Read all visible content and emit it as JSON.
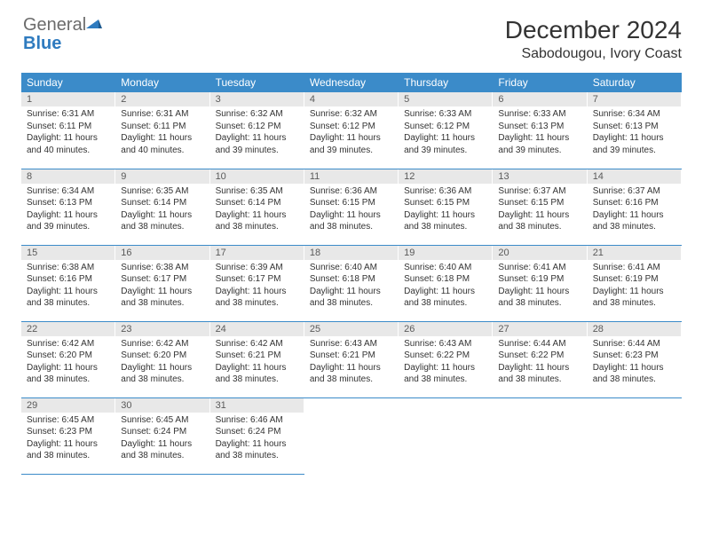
{
  "logo": {
    "general": "General",
    "blue": "Blue"
  },
  "title": "December 2024",
  "location": "Sabodougou, Ivory Coast",
  "colors": {
    "header_bg": "#3b8bc9",
    "header_text": "#ffffff",
    "daynum_bg": "#e8e8e8",
    "row_border": "#3b8bc9",
    "logo_gray": "#6b6b6b",
    "logo_blue": "#2f7bbf"
  },
  "weekdays": [
    "Sunday",
    "Monday",
    "Tuesday",
    "Wednesday",
    "Thursday",
    "Friday",
    "Saturday"
  ],
  "days": [
    {
      "n": 1,
      "sr": "6:31 AM",
      "ss": "6:11 PM",
      "dl": "11 hours and 40 minutes."
    },
    {
      "n": 2,
      "sr": "6:31 AM",
      "ss": "6:11 PM",
      "dl": "11 hours and 40 minutes."
    },
    {
      "n": 3,
      "sr": "6:32 AM",
      "ss": "6:12 PM",
      "dl": "11 hours and 39 minutes."
    },
    {
      "n": 4,
      "sr": "6:32 AM",
      "ss": "6:12 PM",
      "dl": "11 hours and 39 minutes."
    },
    {
      "n": 5,
      "sr": "6:33 AM",
      "ss": "6:12 PM",
      "dl": "11 hours and 39 minutes."
    },
    {
      "n": 6,
      "sr": "6:33 AM",
      "ss": "6:13 PM",
      "dl": "11 hours and 39 minutes."
    },
    {
      "n": 7,
      "sr": "6:34 AM",
      "ss": "6:13 PM",
      "dl": "11 hours and 39 minutes."
    },
    {
      "n": 8,
      "sr": "6:34 AM",
      "ss": "6:13 PM",
      "dl": "11 hours and 39 minutes."
    },
    {
      "n": 9,
      "sr": "6:35 AM",
      "ss": "6:14 PM",
      "dl": "11 hours and 38 minutes."
    },
    {
      "n": 10,
      "sr": "6:35 AM",
      "ss": "6:14 PM",
      "dl": "11 hours and 38 minutes."
    },
    {
      "n": 11,
      "sr": "6:36 AM",
      "ss": "6:15 PM",
      "dl": "11 hours and 38 minutes."
    },
    {
      "n": 12,
      "sr": "6:36 AM",
      "ss": "6:15 PM",
      "dl": "11 hours and 38 minutes."
    },
    {
      "n": 13,
      "sr": "6:37 AM",
      "ss": "6:15 PM",
      "dl": "11 hours and 38 minutes."
    },
    {
      "n": 14,
      "sr": "6:37 AM",
      "ss": "6:16 PM",
      "dl": "11 hours and 38 minutes."
    },
    {
      "n": 15,
      "sr": "6:38 AM",
      "ss": "6:16 PM",
      "dl": "11 hours and 38 minutes."
    },
    {
      "n": 16,
      "sr": "6:38 AM",
      "ss": "6:17 PM",
      "dl": "11 hours and 38 minutes."
    },
    {
      "n": 17,
      "sr": "6:39 AM",
      "ss": "6:17 PM",
      "dl": "11 hours and 38 minutes."
    },
    {
      "n": 18,
      "sr": "6:40 AM",
      "ss": "6:18 PM",
      "dl": "11 hours and 38 minutes."
    },
    {
      "n": 19,
      "sr": "6:40 AM",
      "ss": "6:18 PM",
      "dl": "11 hours and 38 minutes."
    },
    {
      "n": 20,
      "sr": "6:41 AM",
      "ss": "6:19 PM",
      "dl": "11 hours and 38 minutes."
    },
    {
      "n": 21,
      "sr": "6:41 AM",
      "ss": "6:19 PM",
      "dl": "11 hours and 38 minutes."
    },
    {
      "n": 22,
      "sr": "6:42 AM",
      "ss": "6:20 PM",
      "dl": "11 hours and 38 minutes."
    },
    {
      "n": 23,
      "sr": "6:42 AM",
      "ss": "6:20 PM",
      "dl": "11 hours and 38 minutes."
    },
    {
      "n": 24,
      "sr": "6:42 AM",
      "ss": "6:21 PM",
      "dl": "11 hours and 38 minutes."
    },
    {
      "n": 25,
      "sr": "6:43 AM",
      "ss": "6:21 PM",
      "dl": "11 hours and 38 minutes."
    },
    {
      "n": 26,
      "sr": "6:43 AM",
      "ss": "6:22 PM",
      "dl": "11 hours and 38 minutes."
    },
    {
      "n": 27,
      "sr": "6:44 AM",
      "ss": "6:22 PM",
      "dl": "11 hours and 38 minutes."
    },
    {
      "n": 28,
      "sr": "6:44 AM",
      "ss": "6:23 PM",
      "dl": "11 hours and 38 minutes."
    },
    {
      "n": 29,
      "sr": "6:45 AM",
      "ss": "6:23 PM",
      "dl": "11 hours and 38 minutes."
    },
    {
      "n": 30,
      "sr": "6:45 AM",
      "ss": "6:24 PM",
      "dl": "11 hours and 38 minutes."
    },
    {
      "n": 31,
      "sr": "6:46 AM",
      "ss": "6:24 PM",
      "dl": "11 hours and 38 minutes."
    }
  ],
  "labels": {
    "sunrise": "Sunrise:",
    "sunset": "Sunset:",
    "daylight": "Daylight:"
  },
  "start_weekday": 0,
  "trailing_empty": 4
}
